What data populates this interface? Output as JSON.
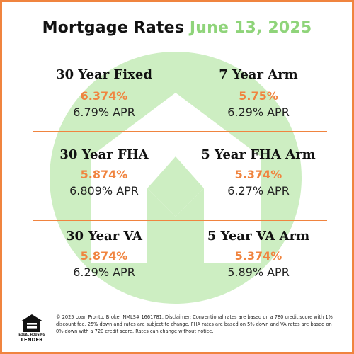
{
  "title": {
    "main": "Mortgage Rates",
    "date": "June 13, 2025"
  },
  "colors": {
    "accent_orange": "#f0843f",
    "accent_green": "#8fd47a",
    "watermark_green": "#cdeec2"
  },
  "rates": [
    {
      "name": "30 Year Fixed",
      "rate": "6.374%",
      "apr": "6.79% APR"
    },
    {
      "name": "7 Year Arm",
      "rate": "5.75%",
      "apr": "6.29% APR"
    },
    {
      "name": "30 Year FHA",
      "rate": "5.874%",
      "apr": "6.809% APR"
    },
    {
      "name": "5 Year FHA Arm",
      "rate": "5.374%",
      "apr": "6.27% APR"
    },
    {
      "name": "30 Year VA",
      "rate": "5.874%",
      "apr": "6.29% APR"
    },
    {
      "name": "5 Year VA Arm",
      "rate": "5.374%",
      "apr": "5.89% APR"
    }
  ],
  "footer": {
    "logo_line1": "EQUAL HOUSING",
    "logo_line2": "LENDER",
    "disclaimer": "© 2025 Loan Pronto. Broker NMLS# 1661781. Disclaimer: Conventional rates are based on a 780 credit score with 1% discount fee, 25% down and rates are subject to change. FHA rates are based on 5% down and VA rates are based on 0% down with a 720 credit score. Rates can change without notice."
  },
  "icons": {
    "watermark": "house-logo-icon",
    "footer_logo": "equal-housing-lender-icon"
  }
}
